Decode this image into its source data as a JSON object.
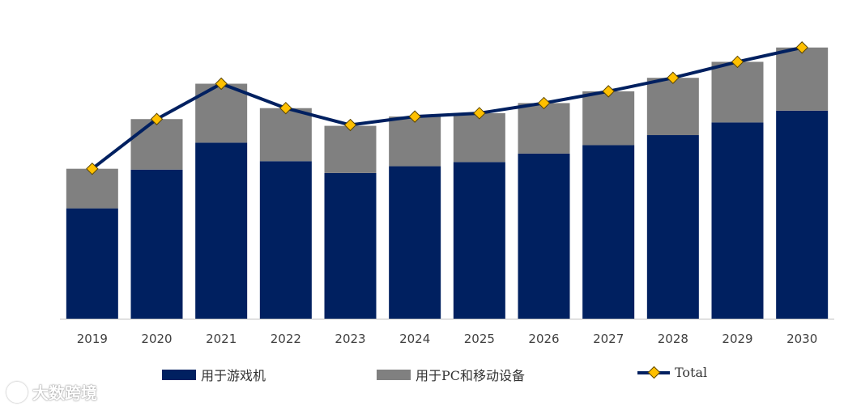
{
  "chart_data": {
    "type": "bar",
    "stacked": true,
    "categories": [
      "2019",
      "2020",
      "2021",
      "2022",
      "2023",
      "2024",
      "2025",
      "2026",
      "2027",
      "2028",
      "2029",
      "2030"
    ],
    "series": [
      {
        "name": "用于游戏机",
        "type": "bar",
        "color": "#002060",
        "values": [
          131,
          177,
          209,
          187,
          173,
          181,
          186,
          196,
          206,
          218,
          233,
          247
        ]
      },
      {
        "name": "用于PC和移动设备",
        "type": "bar",
        "color": "#808080",
        "values": [
          47,
          60,
          70,
          63,
          56,
          59,
          58,
          60,
          64,
          68,
          72,
          75
        ]
      },
      {
        "name": "Total",
        "type": "line",
        "color": "#002060",
        "marker_color": "#FFC000",
        "values": [
          178,
          237,
          279,
          250,
          230,
          240,
          244,
          256,
          270,
          286,
          305,
          322
        ]
      }
    ],
    "ylim": [
      0,
      340
    ],
    "grid": false,
    "legend_position": "bottom"
  },
  "watermark": "大数跨境"
}
